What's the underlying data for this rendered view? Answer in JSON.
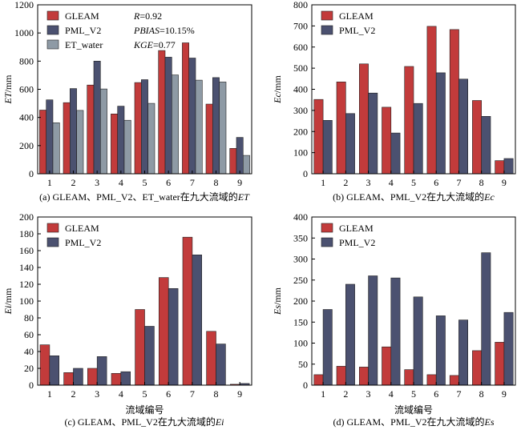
{
  "chart_data": [
    {
      "type": "bar",
      "caption": "(a) GLEAM、PML_V2、ET_water在九大流域的ET",
      "caption_prefix": "(a) GLEAM、PML_V2、ET_water在九大流域的",
      "caption_var": "ET",
      "ylabel_var": "ET",
      "ylabel_unit": "/mm",
      "xlabel": "",
      "categories": [
        "1",
        "2",
        "3",
        "4",
        "5",
        "6",
        "7",
        "8",
        "9"
      ],
      "ylim": [
        0,
        1200
      ],
      "yticks": [
        0,
        200,
        400,
        600,
        800,
        1000,
        1200
      ],
      "series": [
        {
          "name": "GLEAM",
          "color": "#c23b3b",
          "values": [
            452,
            505,
            630,
            425,
            648,
            875,
            930,
            495,
            180
          ]
        },
        {
          "name": "PML_V2",
          "color": "#4b5170",
          "values": [
            525,
            605,
            800,
            480,
            668,
            828,
            822,
            683,
            258
          ]
        },
        {
          "name": "ET_water",
          "color": "#8e9aa5",
          "values": [
            362,
            450,
            602,
            380,
            500,
            702,
            665,
            652,
            130
          ]
        }
      ],
      "stats": [
        {
          "label": "R",
          "value": "=0.92"
        },
        {
          "label": "PBIAS",
          "value": "=10.15%"
        },
        {
          "label": "KGE",
          "value": "=0.77"
        }
      ]
    },
    {
      "type": "bar",
      "caption": "(b) GLEAM、PML_V2在九大流域的Ec",
      "caption_prefix": "(b) GLEAM、PML_V2在九大流域的",
      "caption_var": "Ec",
      "ylabel_var": "Ec",
      "ylabel_unit": "/mm",
      "xlabel": "",
      "categories": [
        "1",
        "2",
        "3",
        "4",
        "5",
        "6",
        "7",
        "8",
        "9"
      ],
      "ylim": [
        0,
        800
      ],
      "yticks": [
        0,
        100,
        200,
        300,
        400,
        500,
        600,
        700,
        800
      ],
      "series": [
        {
          "name": "GLEAM",
          "color": "#c23b3b",
          "values": [
            352,
            435,
            520,
            315,
            508,
            698,
            683,
            347,
            62
          ]
        },
        {
          "name": "PML_V2",
          "color": "#4b5170",
          "values": [
            253,
            285,
            382,
            193,
            333,
            478,
            448,
            272,
            72
          ]
        }
      ]
    },
    {
      "type": "bar",
      "caption": "(c) GLEAM、PML_V2在九大流域的Ei",
      "caption_prefix": "(c) GLEAM、PML_V2在九大流域的",
      "caption_var": "Ei",
      "ylabel_var": "Ei",
      "ylabel_unit": "/mm",
      "xlabel": "流域编号",
      "categories": [
        "1",
        "2",
        "3",
        "4",
        "5",
        "6",
        "7",
        "8",
        "9"
      ],
      "ylim": [
        0,
        200
      ],
      "yticks": [
        0,
        20,
        40,
        60,
        80,
        100,
        120,
        140,
        160,
        180,
        200
      ],
      "series": [
        {
          "name": "GLEAM",
          "color": "#c23b3b",
          "values": [
            48,
            15,
            20,
            14,
            90,
            128,
            176,
            64,
            1
          ]
        },
        {
          "name": "PML_V2",
          "color": "#4b5170",
          "values": [
            35,
            20,
            34,
            16,
            70,
            115,
            155,
            49,
            2
          ]
        }
      ]
    },
    {
      "type": "bar",
      "caption": "(d) GLEAM、PML_V2在九大流域的Es",
      "caption_prefix": "(d) GLEAM、PML_V2在九大流域的",
      "caption_var": "Es",
      "ylabel_var": "Es",
      "ylabel_unit": "/mm",
      "xlabel": "流域编号",
      "categories": [
        "1",
        "2",
        "3",
        "4",
        "5",
        "6",
        "7",
        "8",
        "9"
      ],
      "ylim": [
        0,
        400
      ],
      "yticks": [
        0,
        50,
        100,
        150,
        200,
        250,
        300,
        350,
        400
      ],
      "series": [
        {
          "name": "GLEAM",
          "color": "#c23b3b",
          "values": [
            25,
            45,
            43,
            91,
            37,
            25,
            23,
            82,
            102
          ]
        },
        {
          "name": "PML_V2",
          "color": "#4b5170",
          "values": [
            180,
            240,
            260,
            255,
            210,
            165,
            155,
            315,
            173
          ]
        }
      ]
    }
  ]
}
